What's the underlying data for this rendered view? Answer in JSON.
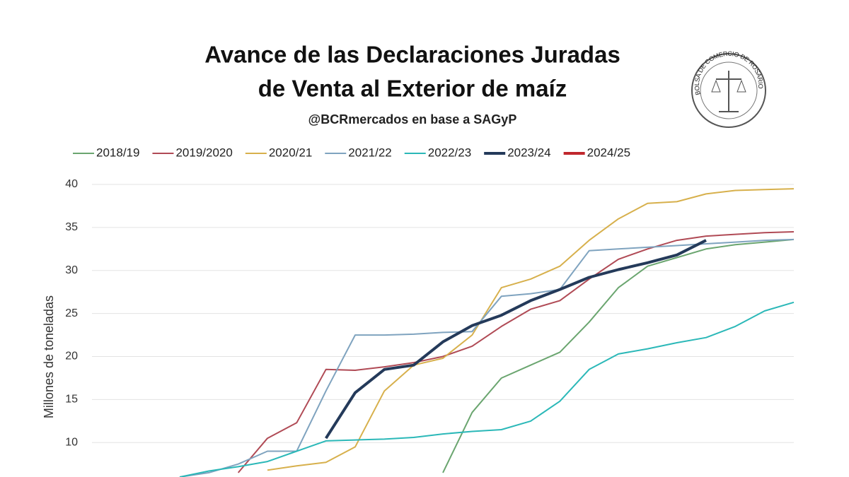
{
  "chart_data": {
    "type": "line",
    "title": [
      "Avance de las Declaraciones Juradas",
      "de Venta al Exterior de maíz"
    ],
    "subtitle": "@BCRmercados en base a SAGyP",
    "y_label": "Millones de toneladas",
    "ylim": [
      6,
      40
    ],
    "yticks": [
      10,
      15,
      20,
      25,
      30,
      35,
      40
    ],
    "grid": true,
    "series": [
      {
        "name": "2018/19",
        "color": "#6aa56f",
        "values": [
          null,
          null,
          null,
          null,
          null,
          null,
          null,
          null,
          null,
          null,
          null,
          null,
          6.5,
          13.5,
          17.5,
          19,
          20.5,
          24,
          28,
          30.5,
          31.5,
          32.5,
          33,
          33.3,
          33.6
        ]
      },
      {
        "name": "2019/2020",
        "color": "#b04a55",
        "values": [
          null,
          null,
          null,
          null,
          null,
          6.5,
          10.5,
          12.3,
          18.5,
          18.4,
          18.8,
          19.3,
          20,
          21.2,
          23.5,
          25.5,
          26.5,
          29,
          31.3,
          32.5,
          33.5,
          34,
          34.2,
          34.4,
          34.5
        ]
      },
      {
        "name": "2020/21",
        "color": "#d7b04c",
        "values": [
          null,
          null,
          null,
          null,
          null,
          null,
          6.8,
          7.3,
          7.7,
          9.5,
          16,
          19,
          19.8,
          22.5,
          28,
          29,
          30.5,
          33.5,
          36,
          37.8,
          38,
          38.9,
          39.3,
          39.4,
          39.5
        ]
      },
      {
        "name": "2021/22",
        "color": "#7fa3bf",
        "values": [
          null,
          null,
          null,
          6,
          6.5,
          7.5,
          9,
          9,
          16,
          22.5,
          22.5,
          22.6,
          22.8,
          22.9,
          27,
          27.3,
          27.8,
          32.3,
          32.5,
          32.7,
          32.9,
          33.1,
          33.3,
          33.5,
          33.6
        ]
      },
      {
        "name": "2022/23",
        "color": "#2bb8b8",
        "values": [
          null,
          null,
          null,
          6,
          6.7,
          7.2,
          7.8,
          9,
          10.2,
          10.3,
          10.4,
          10.6,
          11,
          11.3,
          11.5,
          12.5,
          14.8,
          18.5,
          20.3,
          20.9,
          21.6,
          22.2,
          23.5,
          25.3,
          26.3
        ]
      },
      {
        "name": "2023/24",
        "color": "#243a5a",
        "values": [
          null,
          null,
          null,
          null,
          null,
          null,
          null,
          null,
          10.5,
          15.8,
          18.5,
          19,
          21.7,
          23.6,
          24.8,
          26.5,
          27.8,
          29.2,
          30.1,
          30.9,
          31.8,
          33.5,
          null,
          null,
          null
        ]
      },
      {
        "name": "2024/25",
        "color": "#c0272d",
        "values": [
          null,
          null,
          null,
          null,
          null,
          null,
          null,
          null,
          null,
          null,
          null,
          null,
          null,
          null,
          null,
          null,
          null,
          null,
          null,
          null,
          null,
          null,
          null,
          null,
          null
        ]
      }
    ]
  },
  "logo": {
    "text": "BOLSA DE COMERCIO DE ROSARIO"
  }
}
